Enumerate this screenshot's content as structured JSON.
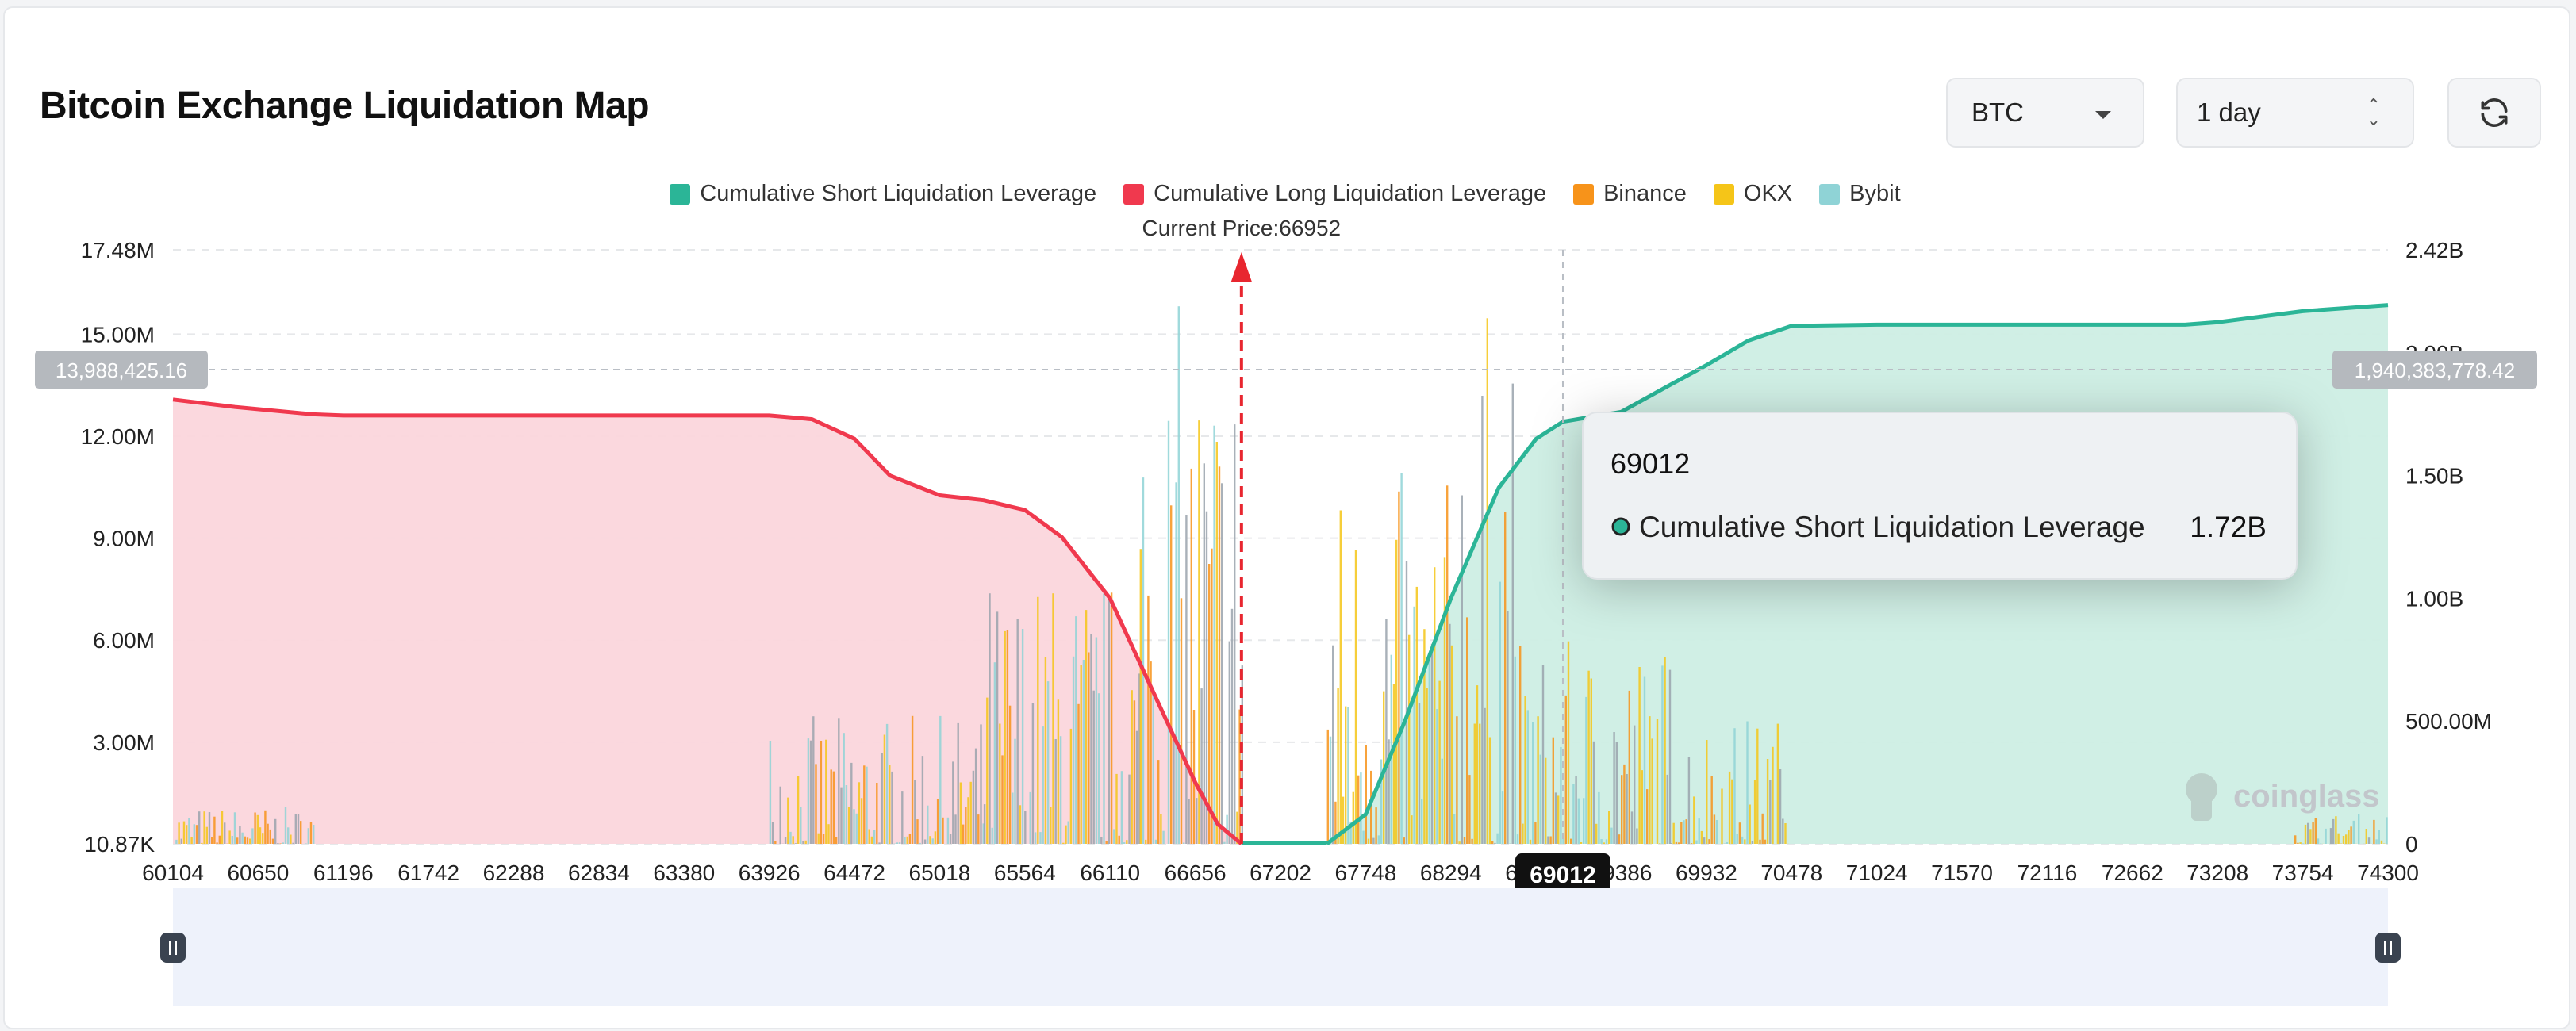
{
  "header": {
    "title": "Bitcoin Exchange Liquidation Map",
    "coin_select": "BTC",
    "range_select": "1 day"
  },
  "colors": {
    "short_cum": "#2bb597",
    "long_cum": "#f0394e",
    "binance": "#f7931a",
    "okx": "#f5c518",
    "bybit": "#8fd3d6",
    "current_price": "#e8262f"
  },
  "icons": {
    "refresh": "refresh-icon",
    "dropdown": "chevron-down-icon",
    "stepper": "up-down-icon",
    "watermark": "coinglass-logo-icon"
  },
  "watermark": "coinglass",
  "current_price_label": "Current Price:66952",
  "crosshair": {
    "x_label": "69012",
    "left_value": "13,988,425.16",
    "right_value": "1,940,383,778.42"
  },
  "tooltip": {
    "title": "69012",
    "series": "Cumulative Short Liquidation Leverage",
    "value": "1.72B"
  },
  "chart_data": {
    "type": "bar",
    "legend": [
      "Cumulative Short Liquidation Leverage",
      "Cumulative Long Liquidation Leverage",
      "Binance",
      "OKX",
      "Bybit"
    ],
    "legend_position": "top-center",
    "x_ticks": [
      "60104",
      "60650",
      "61196",
      "61742",
      "62288",
      "62834",
      "63380",
      "63926",
      "64472",
      "65018",
      "65564",
      "66110",
      "66656",
      "67202",
      "67748",
      "68294",
      "68840",
      "69386",
      "69932",
      "70478",
      "71024",
      "71570",
      "72116",
      "72662",
      "73208",
      "73754",
      "74300"
    ],
    "xlim": [
      60104,
      74300
    ],
    "y_left_ticks": [
      "10.87K",
      "3.00M",
      "6.00M",
      "9.00M",
      "12.00M",
      "15.00M",
      "17.48M"
    ],
    "y_left_range": [
      10870,
      17480000
    ],
    "y_right_ticks": [
      "0",
      "500.00M",
      "1.00B",
      "1.50B",
      "2.00B",
      "2.42B"
    ],
    "y_right_range": [
      0,
      2420000000
    ],
    "current_price": 66952,
    "series": [
      {
        "name": "Cumulative Long Liquidation Leverage",
        "axis": "right",
        "x": [
          60104,
          60500,
          61000,
          61196,
          62000,
          63000,
          63926,
          64200,
          64472,
          64700,
          65018,
          65300,
          65564,
          65800,
          66110,
          66400,
          66656,
          66800,
          66952
        ],
        "y": [
          1810000000,
          1780000000,
          1750000000,
          1745000000,
          1745000000,
          1745000000,
          1745000000,
          1730000000,
          1650000000,
          1500000000,
          1420000000,
          1400000000,
          1360000000,
          1250000000,
          1000000000,
          600000000,
          250000000,
          80000000,
          0
        ]
      },
      {
        "name": "Cumulative Short Liquidation Leverage",
        "axis": "right",
        "x": [
          67500,
          67748,
          68000,
          68294,
          68600,
          68840,
          69012,
          69386,
          69700,
          69932,
          70200,
          70478,
          71024,
          72000,
          73000,
          73208,
          73754,
          74300
        ],
        "y": [
          0,
          120000000,
          500000000,
          1000000000,
          1450000000,
          1650000000,
          1720000000,
          1760000000,
          1870000000,
          1950000000,
          2050000000,
          2110000000,
          2115000000,
          2115000000,
          2115000000,
          2125000000,
          2170000000,
          2195000000
        ]
      }
    ],
    "histogram_clusters": [
      {
        "from": 60104,
        "to": 61000,
        "peak": 1100000
      },
      {
        "from": 63926,
        "to": 65300,
        "peak": 3800000
      },
      {
        "from": 65300,
        "to": 66300,
        "peak": 8000000
      },
      {
        "from": 66300,
        "to": 66952,
        "peak": 16000000
      },
      {
        "from": 67500,
        "to": 68294,
        "peak": 11000000
      },
      {
        "from": 68294,
        "to": 68700,
        "peak": 16000000
      },
      {
        "from": 68700,
        "to": 69700,
        "peak": 6000000
      },
      {
        "from": 69700,
        "to": 70478,
        "peak": 3800000
      },
      {
        "from": 73700,
        "to": 74300,
        "peak": 900000
      }
    ]
  }
}
